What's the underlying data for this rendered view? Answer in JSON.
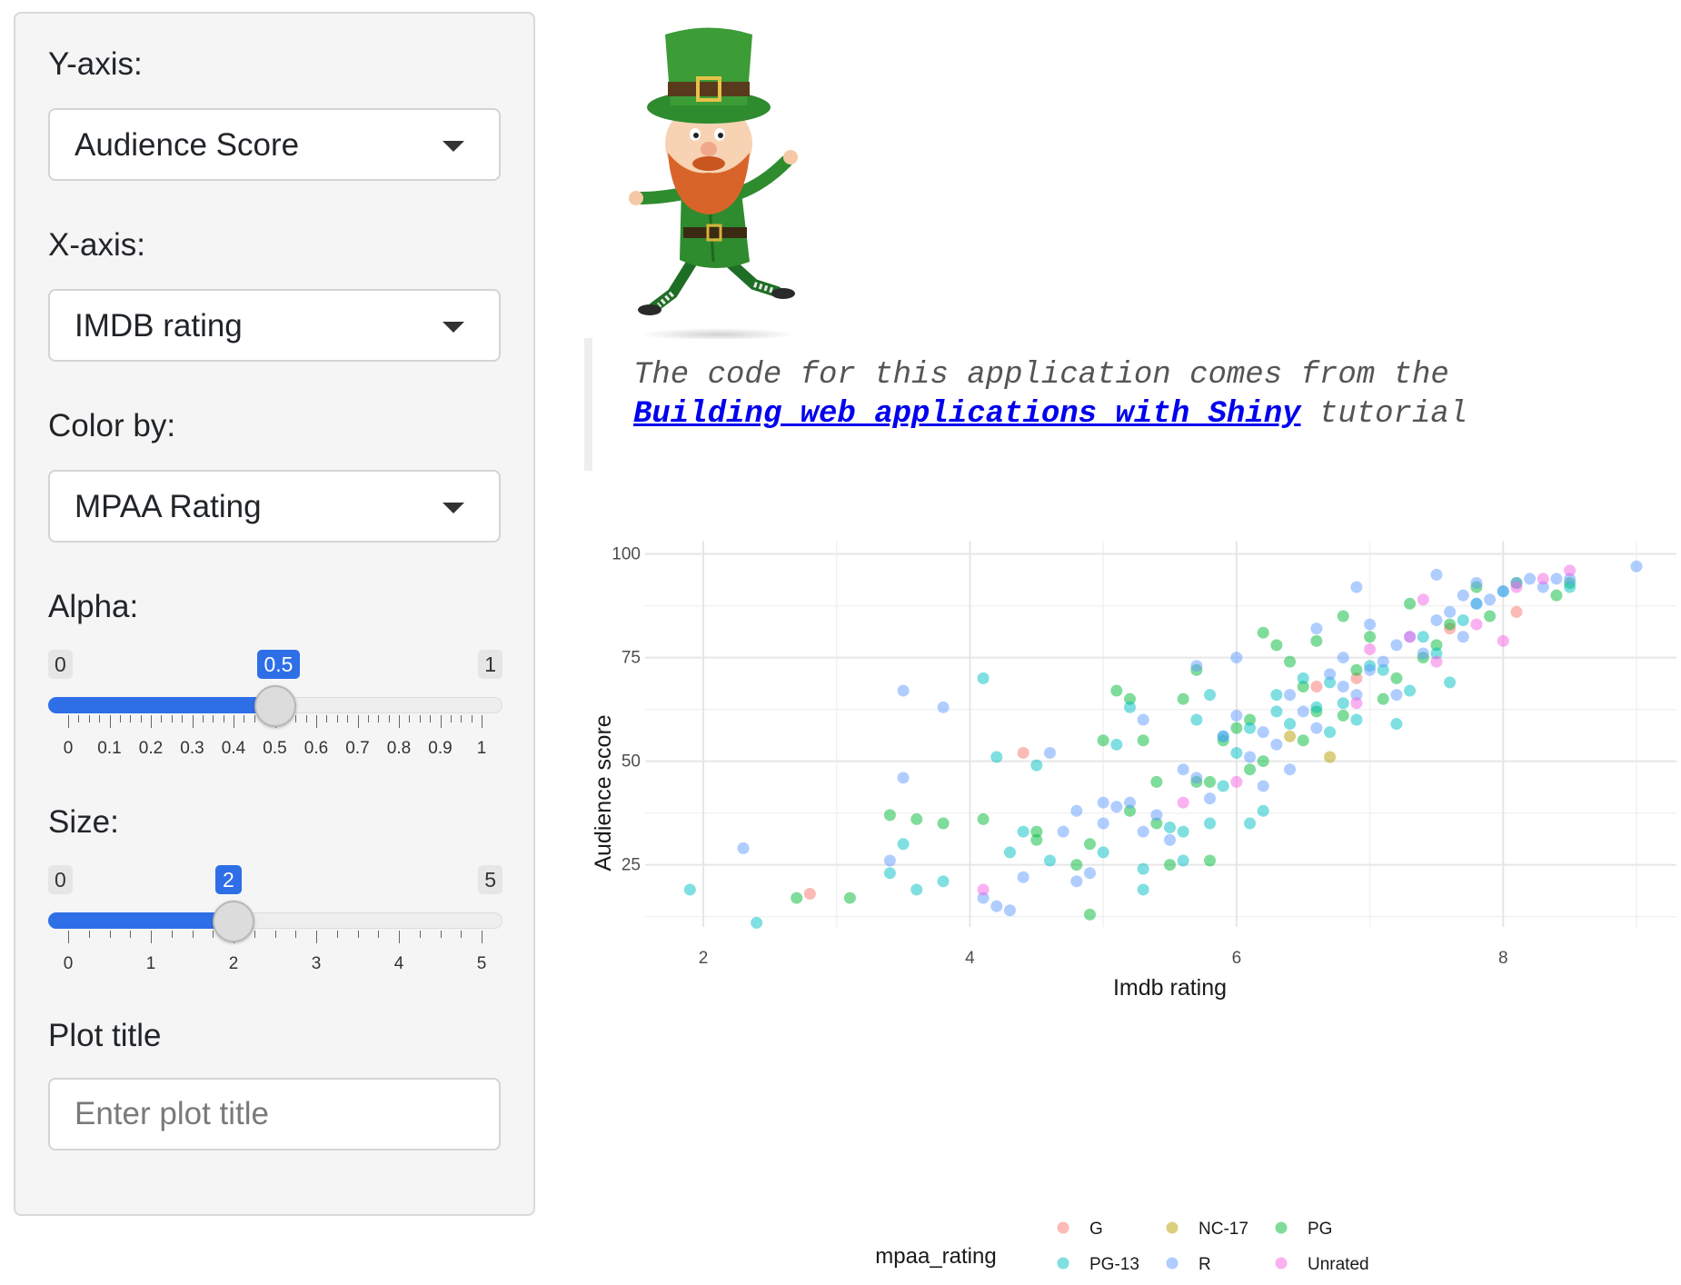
{
  "sidebar": {
    "y_axis": {
      "label": "Y-axis:",
      "value": "Audience Score"
    },
    "x_axis": {
      "label": "X-axis:",
      "value": "IMDB rating"
    },
    "color_by": {
      "label": "Color by:",
      "value": "MPAA Rating"
    },
    "alpha": {
      "label": "Alpha:",
      "min": 0,
      "max": 1,
      "value": 0.5,
      "min_label": "0",
      "max_label": "1",
      "value_label": "0.5",
      "tick_labels": [
        "0",
        "0.1",
        "0.2",
        "0.3",
        "0.4",
        "0.5",
        "0.6",
        "0.7",
        "0.8",
        "0.9",
        "1"
      ]
    },
    "size": {
      "label": "Size:",
      "min": 0,
      "max": 5,
      "value": 2,
      "min_label": "0",
      "max_label": "5",
      "value_label": "2",
      "tick_labels": [
        "0",
        "1",
        "2",
        "3",
        "4",
        "5"
      ]
    },
    "plot_title": {
      "label": "Plot title",
      "placeholder": "Enter plot title",
      "value": ""
    }
  },
  "quote": {
    "line1": "The code for this application comes from the",
    "link_text": "Building web applications with Shiny",
    "suffix": " tutorial"
  },
  "chart_data": {
    "type": "scatter",
    "xlabel": "Imdb rating",
    "ylabel": "Audience score",
    "xlim": [
      1.7,
      9.3
    ],
    "ylim": [
      10,
      101
    ],
    "x_ticks": [
      2,
      4,
      6,
      8
    ],
    "y_ticks": [
      25,
      50,
      75,
      100
    ],
    "grid": true,
    "legend_title": "mpaa_rating",
    "legend_position": "bottom",
    "point_alpha": 0.5,
    "series": [
      {
        "name": "G",
        "color": "#F8766D",
        "points": [
          [
            2.8,
            18
          ],
          [
            4.4,
            52
          ],
          [
            6.9,
            70
          ],
          [
            7.6,
            82
          ],
          [
            8.1,
            86
          ],
          [
            6.6,
            68
          ]
        ]
      },
      {
        "name": "NC-17",
        "color": "#B79F00",
        "points": [
          [
            6.4,
            56
          ],
          [
            6.7,
            51
          ]
        ]
      },
      {
        "name": "PG",
        "color": "#00BA38",
        "points": [
          [
            2.7,
            17
          ],
          [
            3.1,
            17
          ],
          [
            3.4,
            37
          ],
          [
            3.6,
            36
          ],
          [
            3.8,
            35
          ],
          [
            4.1,
            36
          ],
          [
            4.5,
            31
          ],
          [
            4.8,
            25
          ],
          [
            4.9,
            30
          ],
          [
            4.9,
            13
          ],
          [
            5.1,
            67
          ],
          [
            5.2,
            65
          ],
          [
            5.3,
            55
          ],
          [
            5.4,
            35
          ],
          [
            5.5,
            25
          ],
          [
            5.6,
            65
          ],
          [
            5.7,
            72
          ],
          [
            5.7,
            45
          ],
          [
            5.8,
            26
          ],
          [
            5.9,
            55
          ],
          [
            6.1,
            48
          ],
          [
            6.2,
            81
          ],
          [
            6.3,
            78
          ],
          [
            6.4,
            74
          ],
          [
            6.5,
            68
          ],
          [
            6.6,
            79
          ],
          [
            6.8,
            85
          ],
          [
            6.9,
            72
          ],
          [
            7.0,
            80
          ],
          [
            7.2,
            70
          ],
          [
            7.3,
            88
          ],
          [
            7.5,
            78
          ],
          [
            7.6,
            83
          ],
          [
            7.8,
            92
          ],
          [
            8.1,
            93
          ],
          [
            8.4,
            90
          ],
          [
            8.5,
            93
          ],
          [
            6.0,
            58
          ],
          [
            6.5,
            55
          ],
          [
            7.1,
            65
          ],
          [
            5.4,
            45
          ],
          [
            5.0,
            55
          ],
          [
            6.2,
            50
          ],
          [
            6.8,
            61
          ],
          [
            7.4,
            75
          ],
          [
            7.9,
            85
          ],
          [
            5.8,
            45
          ],
          [
            6.1,
            60
          ],
          [
            6.6,
            62
          ],
          [
            5.2,
            38
          ],
          [
            4.5,
            33
          ]
        ]
      },
      {
        "name": "PG-13",
        "color": "#00BFC4",
        "points": [
          [
            1.9,
            19
          ],
          [
            2.4,
            11
          ],
          [
            3.4,
            23
          ],
          [
            3.5,
            30
          ],
          [
            3.6,
            19
          ],
          [
            3.8,
            21
          ],
          [
            4.1,
            70
          ],
          [
            4.2,
            51
          ],
          [
            4.3,
            28
          ],
          [
            4.5,
            49
          ],
          [
            4.6,
            26
          ],
          [
            5.1,
            54
          ],
          [
            5.2,
            63
          ],
          [
            5.3,
            24
          ],
          [
            5.5,
            34
          ],
          [
            5.6,
            26
          ],
          [
            5.8,
            66
          ],
          [
            5.9,
            44
          ],
          [
            6.0,
            52
          ],
          [
            6.1,
            58
          ],
          [
            6.2,
            38
          ],
          [
            6.3,
            62
          ],
          [
            6.4,
            59
          ],
          [
            6.6,
            63
          ],
          [
            6.7,
            57
          ],
          [
            6.8,
            64
          ],
          [
            6.9,
            60
          ],
          [
            7.0,
            73
          ],
          [
            7.2,
            59
          ],
          [
            7.4,
            80
          ],
          [
            7.6,
            69
          ],
          [
            7.8,
            88
          ],
          [
            8.0,
            91
          ],
          [
            8.5,
            92
          ],
          [
            6.5,
            70
          ],
          [
            5.9,
            56
          ],
          [
            7.1,
            72
          ],
          [
            7.3,
            67
          ],
          [
            5.6,
            33
          ],
          [
            5.7,
            60
          ],
          [
            6.1,
            35
          ],
          [
            4.4,
            33
          ],
          [
            5.0,
            28
          ],
          [
            5.3,
            19
          ],
          [
            5.8,
            35
          ],
          [
            6.3,
            66
          ],
          [
            6.7,
            69
          ],
          [
            7.5,
            76
          ],
          [
            7.7,
            84
          ]
        ]
      },
      {
        "name": "R",
        "color": "#619CFF",
        "points": [
          [
            2.3,
            29
          ],
          [
            3.4,
            26
          ],
          [
            3.5,
            46
          ],
          [
            3.5,
            67
          ],
          [
            3.8,
            63
          ],
          [
            4.1,
            17
          ],
          [
            4.2,
            15
          ],
          [
            4.3,
            14
          ],
          [
            4.4,
            22
          ],
          [
            4.6,
            52
          ],
          [
            4.7,
            33
          ],
          [
            4.8,
            38
          ],
          [
            4.9,
            23
          ],
          [
            5.0,
            35
          ],
          [
            5.1,
            39
          ],
          [
            5.2,
            40
          ],
          [
            5.3,
            33
          ],
          [
            5.4,
            37
          ],
          [
            5.5,
            31
          ],
          [
            5.6,
            48
          ],
          [
            5.7,
            46
          ],
          [
            5.8,
            41
          ],
          [
            5.9,
            56
          ],
          [
            6.0,
            61
          ],
          [
            6.1,
            51
          ],
          [
            6.2,
            57
          ],
          [
            6.3,
            54
          ],
          [
            6.4,
            66
          ],
          [
            6.5,
            62
          ],
          [
            6.6,
            58
          ],
          [
            6.7,
            71
          ],
          [
            6.8,
            68
          ],
          [
            6.9,
            66
          ],
          [
            7.0,
            72
          ],
          [
            7.1,
            74
          ],
          [
            7.2,
            78
          ],
          [
            7.3,
            80
          ],
          [
            7.4,
            76
          ],
          [
            7.5,
            84
          ],
          [
            7.6,
            86
          ],
          [
            7.7,
            90
          ],
          [
            7.8,
            88
          ],
          [
            7.9,
            89
          ],
          [
            8.0,
            91
          ],
          [
            8.1,
            93
          ],
          [
            8.2,
            94
          ],
          [
            8.3,
            92
          ],
          [
            8.4,
            94
          ],
          [
            8.5,
            94
          ],
          [
            9.0,
            97
          ],
          [
            5.7,
            73
          ],
          [
            6.0,
            75
          ],
          [
            6.9,
            92
          ],
          [
            7.2,
            66
          ],
          [
            7.5,
            95
          ],
          [
            7.7,
            80
          ],
          [
            5.3,
            60
          ],
          [
            4.8,
            21
          ],
          [
            6.2,
            44
          ],
          [
            7.0,
            83
          ],
          [
            7.8,
            93
          ],
          [
            6.6,
            82
          ],
          [
            5.0,
            40
          ],
          [
            6.4,
            48
          ],
          [
            6.8,
            75
          ]
        ]
      },
      {
        "name": "Unrated",
        "color": "#F564E3",
        "points": [
          [
            4.1,
            19
          ],
          [
            5.6,
            40
          ],
          [
            6.0,
            45
          ],
          [
            6.9,
            64
          ],
          [
            7.3,
            80
          ],
          [
            7.4,
            89
          ],
          [
            7.5,
            74
          ],
          [
            7.8,
            83
          ],
          [
            8.0,
            79
          ],
          [
            8.1,
            92
          ],
          [
            8.3,
            94
          ],
          [
            8.5,
            96
          ],
          [
            7.0,
            77
          ]
        ]
      }
    ]
  }
}
